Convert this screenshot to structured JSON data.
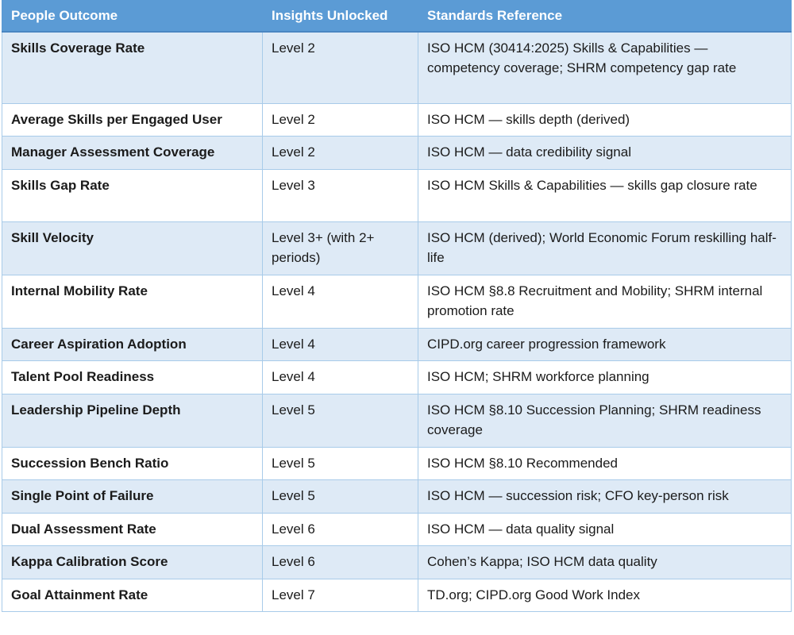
{
  "table": {
    "headers": {
      "outcome": "People Outcome",
      "level": "Insights Unlocked",
      "reference": "Standards Reference"
    },
    "rows": [
      {
        "outcome": "Skills Coverage Rate",
        "level": "Level 2",
        "reference": "ISO HCM (30414:2025) Skills & Capabilities — competency coverage; SHRM competency gap rate"
      },
      {
        "outcome": "Average Skills per Engaged User",
        "level": "Level 2",
        "reference": "ISO HCM — skills depth (derived)"
      },
      {
        "outcome": "Manager Assessment Coverage",
        "level": "Level 2",
        "reference": "ISO HCM — data credibility signal"
      },
      {
        "outcome": "Skills Gap Rate",
        "level": "Level 3",
        "reference": "ISO HCM Skills & Capabilities — skills gap closure rate"
      },
      {
        "outcome": "Skill Velocity",
        "level": "Level 3+ (with 2+ periods)",
        "reference": "ISO HCM (derived); World Economic Forum reskilling half-life"
      },
      {
        "outcome": "Internal Mobility Rate",
        "level": "Level 4",
        "reference": "ISO HCM §8.8 Recruitment and Mobility; SHRM internal promotion rate"
      },
      {
        "outcome": "Career Aspiration Adoption",
        "level": "Level 4",
        "reference": "CIPD.org career progression framework"
      },
      {
        "outcome": "Talent Pool Readiness",
        "level": "Level 4",
        "reference": "ISO HCM; SHRM workforce planning"
      },
      {
        "outcome": "Leadership Pipeline Depth",
        "level": "Level 5",
        "reference": "ISO HCM §8.10 Succession Planning; SHRM readiness coverage"
      },
      {
        "outcome": "Succession Bench Ratio",
        "level": "Level 5",
        "reference": "ISO HCM §8.10 Recommended"
      },
      {
        "outcome": "Single Point of Failure",
        "level": "Level 5",
        "reference": "ISO HCM — succession risk; CFO key-person risk"
      },
      {
        "outcome": "Dual Assessment Rate",
        "level": "Level 6",
        "reference": "ISO HCM — data quality signal"
      },
      {
        "outcome": "Kappa Calibration Score",
        "level": "Level 6",
        "reference": "Cohen’s Kappa; ISO HCM data quality"
      },
      {
        "outcome": "Goal Attainment Rate",
        "level": "Level 7",
        "reference": "TD.org; CIPD.org Good Work Index"
      }
    ]
  },
  "colors": {
    "header_bg": "#5b9bd5",
    "band_bg": "#deeaf6",
    "border": "#a8cbe9",
    "header_text": "#ffffff",
    "body_text": "#1b1b1b"
  }
}
